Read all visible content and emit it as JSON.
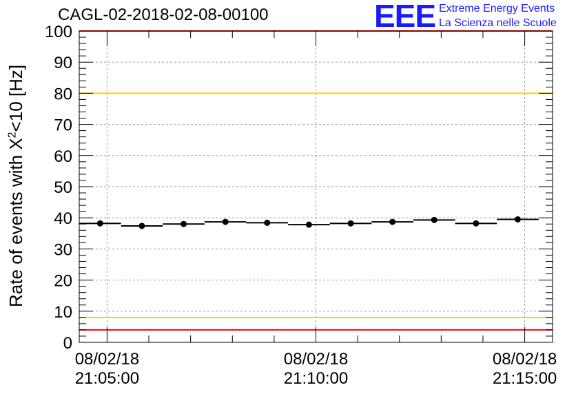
{
  "header": {
    "title": "CAGL-02-2018-02-08-00100",
    "logo_mark": "EEE",
    "logo_line1": "Extreme Energy Events",
    "logo_line2": "La Scienza nelle Scuole"
  },
  "chart_data": {
    "type": "scatter",
    "title": "CAGL-02-2018-02-08-00100",
    "ylabel_main": "Rate of events with X",
    "ylabel_sup": "2",
    "ylabel_tail": "<10 [Hz]",
    "ylim": [
      0,
      100
    ],
    "yticks": [
      "0",
      "10",
      "20",
      "30",
      "40",
      "50",
      "60",
      "70",
      "80",
      "90",
      "100"
    ],
    "xlim": [
      "21:04:20",
      "21:15:40"
    ],
    "xticks": [
      {
        "date": "08/02/18",
        "time": "21:05:00"
      },
      {
        "date": "08/02/18",
        "time": "21:10:00"
      },
      {
        "date": "08/02/18",
        "time": "21:15:00"
      }
    ],
    "grid": true,
    "points": [
      {
        "x": "21:04:50",
        "y": 38.2
      },
      {
        "x": "21:05:50",
        "y": 37.4
      },
      {
        "x": "21:06:50",
        "y": 38.0
      },
      {
        "x": "21:07:50",
        "y": 38.7
      },
      {
        "x": "21:08:50",
        "y": 38.4
      },
      {
        "x": "21:09:50",
        "y": 37.8
      },
      {
        "x": "21:10:50",
        "y": 38.2
      },
      {
        "x": "21:11:50",
        "y": 38.7
      },
      {
        "x": "21:12:50",
        "y": 39.3
      },
      {
        "x": "21:13:50",
        "y": 38.2
      },
      {
        "x": "21:14:50",
        "y": 39.5
      }
    ],
    "bin_width_seconds": 60,
    "reference_lines": [
      {
        "y": 100,
        "color": "#ff0000"
      },
      {
        "y": 80,
        "color": "#ffcc00"
      },
      {
        "y": 8,
        "color": "#ffcc00"
      },
      {
        "y": 4,
        "color": "#ff0000"
      }
    ]
  }
}
